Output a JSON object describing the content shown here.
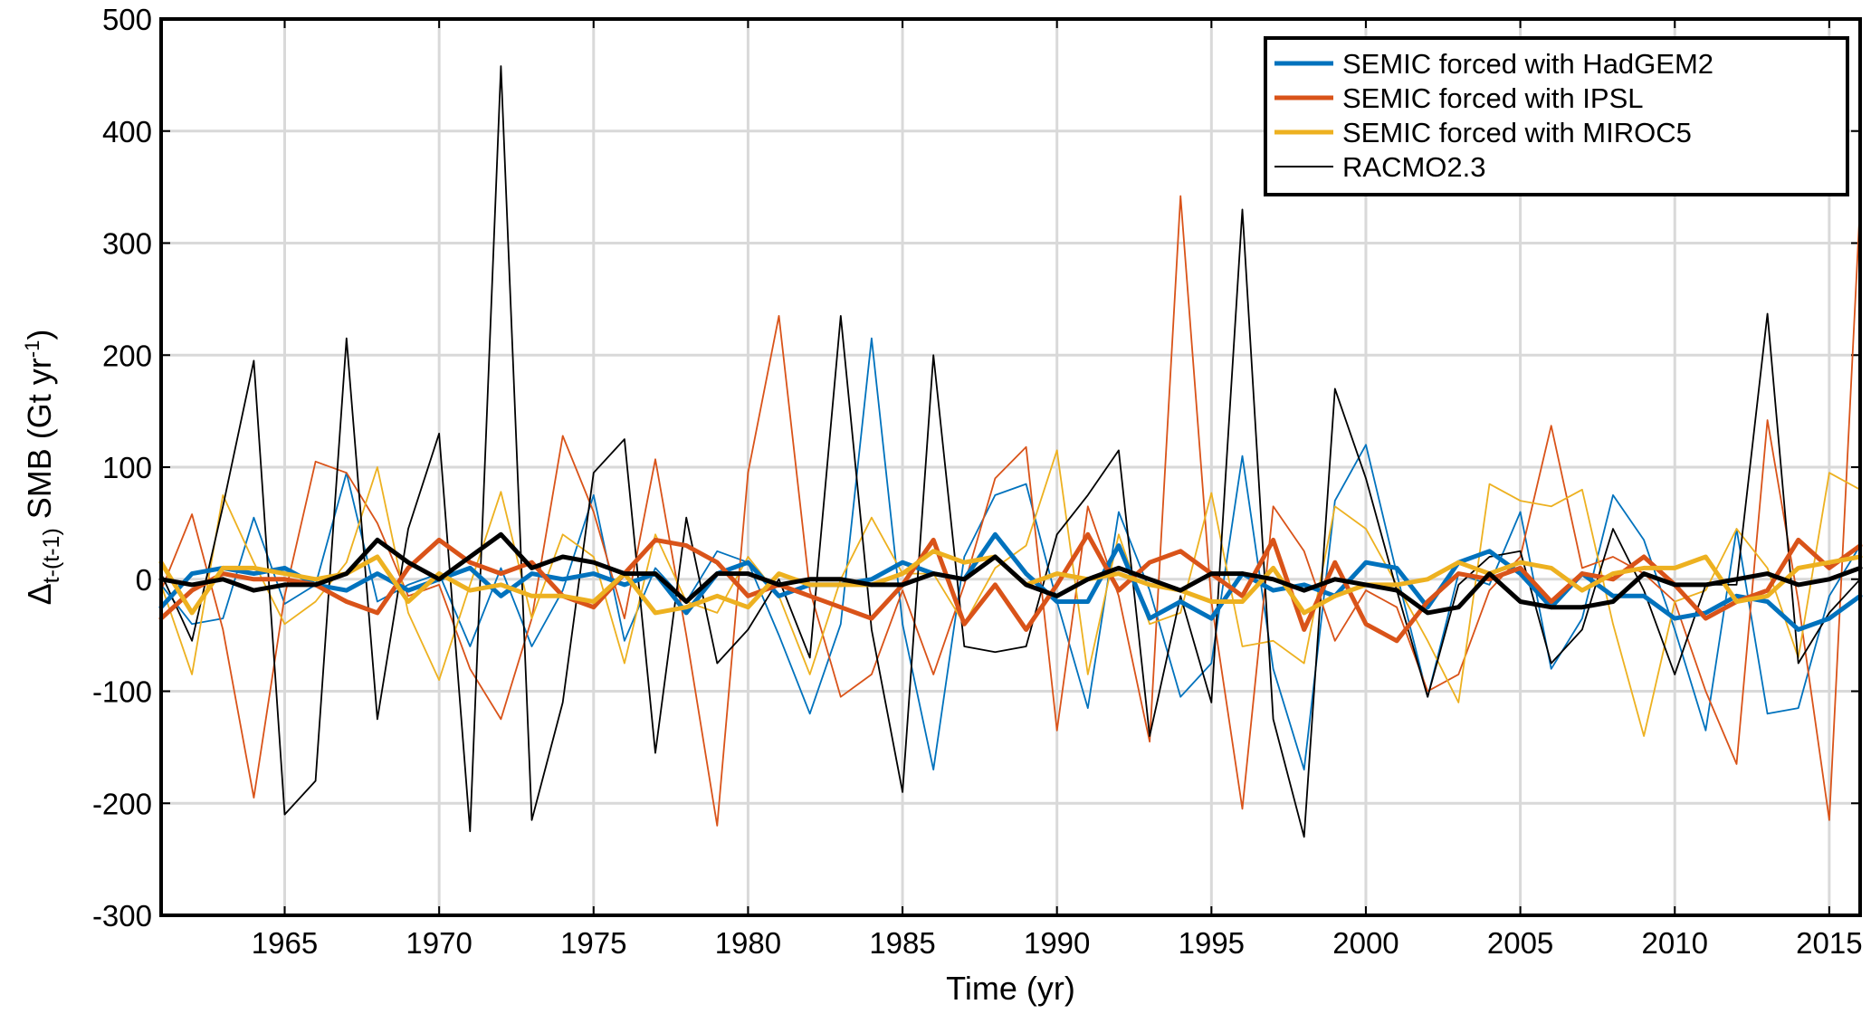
{
  "chart_data": {
    "type": "line",
    "xlabel": "Time (yr)",
    "ylabel": {
      "delta": "Δ",
      "subscript": "t-(t-1)",
      "main": " SMB (Gt yr",
      "superscript": "-1",
      "close": ")"
    },
    "xlim": [
      1961,
      2016
    ],
    "ylim": [
      -300,
      500
    ],
    "xticks": [
      1965,
      1970,
      1975,
      1980,
      1985,
      1990,
      1995,
      2000,
      2005,
      2010,
      2015
    ],
    "yticks": [
      -300,
      -200,
      -100,
      0,
      100,
      200,
      300,
      400,
      500
    ],
    "grid": true,
    "legend_position": "top-right",
    "x": [
      1961,
      1962,
      1963,
      1964,
      1965,
      1966,
      1967,
      1968,
      1969,
      1970,
      1971,
      1972,
      1973,
      1974,
      1975,
      1976,
      1977,
      1978,
      1979,
      1980,
      1981,
      1982,
      1983,
      1984,
      1985,
      1986,
      1987,
      1988,
      1989,
      1990,
      1991,
      1992,
      1993,
      1994,
      1995,
      1996,
      1997,
      1998,
      1999,
      2000,
      2001,
      2002,
      2003,
      2004,
      2005,
      2006,
      2007,
      2008,
      2009,
      2010,
      2011,
      2012,
      2013,
      2014,
      2015,
      2016
    ],
    "series": [
      {
        "name": "SEMIC forced with HadGEM2",
        "color": "#0072BD",
        "style": "thin",
        "values": [
          -5,
          -40,
          -35,
          55,
          -22,
          -5,
          95,
          -20,
          -5,
          5,
          -60,
          10,
          -60,
          -10,
          75,
          -55,
          10,
          -20,
          25,
          15,
          -50,
          -120,
          -40,
          215,
          -40,
          -170,
          20,
          75,
          85,
          -20,
          -115,
          60,
          -10,
          -105,
          -75,
          110,
          -80,
          -170,
          70,
          120,
          5,
          -105,
          5,
          -5,
          60,
          -80,
          -35,
          75,
          35,
          -45,
          -135,
          45,
          -120,
          -115,
          -15,
          30
        ]
      },
      {
        "name": "SEMIC forced with IPSL",
        "color": "#D95319",
        "style": "thin",
        "values": [
          -10,
          58,
          -45,
          -195,
          -15,
          105,
          95,
          50,
          -15,
          -5,
          -80,
          -125,
          -35,
          128,
          60,
          -35,
          107,
          -50,
          -220,
          95,
          235,
          -10,
          -105,
          -85,
          -10,
          -85,
          -5,
          90,
          118,
          -135,
          65,
          -15,
          -145,
          342,
          -20,
          -205,
          65,
          25,
          -55,
          -10,
          -25,
          -100,
          -85,
          -10,
          20,
          137,
          10,
          20,
          5,
          -20,
          -100,
          -165,
          142,
          -20,
          -215,
          335
        ]
      },
      {
        "name": "SEMIC forced with MIROC5",
        "color": "#EDB120",
        "style": "thin",
        "values": [
          -5,
          -85,
          75,
          15,
          -40,
          -20,
          15,
          100,
          -30,
          -90,
          -5,
          78,
          -35,
          40,
          20,
          -75,
          40,
          -20,
          -30,
          20,
          -15,
          -85,
          0,
          55,
          5,
          5,
          -40,
          10,
          30,
          115,
          -85,
          40,
          -40,
          -30,
          77,
          -60,
          -55,
          -75,
          65,
          45,
          -5,
          -55,
          -110,
          85,
          70,
          65,
          80,
          -40,
          -140,
          -20,
          -10,
          45,
          10,
          -70,
          95,
          80
        ]
      },
      {
        "name": "RACMO2.3",
        "color": "#000000",
        "style": "thin",
        "values": [
          5,
          -55,
          65,
          195,
          -210,
          -180,
          215,
          -125,
          45,
          130,
          -225,
          458,
          -215,
          -110,
          95,
          125,
          -155,
          55,
          -75,
          -45,
          0,
          -70,
          235,
          -45,
          -190,
          200,
          -60,
          -65,
          -60,
          40,
          75,
          115,
          -140,
          -15,
          -110,
          330,
          -125,
          -230,
          170,
          90,
          -10,
          -105,
          -5,
          20,
          25,
          -75,
          -45,
          45,
          -10,
          -85,
          -5,
          -5,
          237,
          -75,
          -30,
          0
        ]
      },
      {
        "name": "SEMIC forced with HadGEM2 (smoothed)",
        "color": "#0072BD",
        "style": "thick",
        "values": [
          -25,
          5,
          10,
          5,
          10,
          -5,
          -10,
          5,
          -10,
          0,
          10,
          -15,
          5,
          0,
          5,
          -5,
          5,
          -30,
          5,
          15,
          -15,
          -5,
          -5,
          0,
          15,
          5,
          0,
          40,
          5,
          -20,
          -20,
          30,
          -35,
          -20,
          -35,
          5,
          -10,
          -5,
          -15,
          15,
          10,
          -25,
          15,
          25,
          5,
          -25,
          5,
          -15,
          -15,
          -35,
          -30,
          -15,
          -20,
          -45,
          -35,
          -15
        ]
      },
      {
        "name": "SEMIC forced with IPSL (smoothed)",
        "color": "#D95319",
        "style": "thick",
        "values": [
          -35,
          -10,
          5,
          0,
          0,
          -5,
          -20,
          -30,
          10,
          35,
          15,
          5,
          15,
          -15,
          -25,
          5,
          35,
          30,
          15,
          -15,
          -5,
          -15,
          -25,
          -35,
          -5,
          35,
          -40,
          -5,
          -45,
          -5,
          40,
          -10,
          15,
          25,
          5,
          -15,
          35,
          -45,
          15,
          -40,
          -55,
          -20,
          5,
          0,
          10,
          -20,
          5,
          0,
          20,
          -5,
          -35,
          -20,
          -10,
          35,
          10,
          30
        ]
      },
      {
        "name": "SEMIC forced with MIROC5 (smoothed)",
        "color": "#EDB120",
        "style": "thick",
        "values": [
          15,
          -30,
          10,
          10,
          5,
          0,
          5,
          20,
          -20,
          5,
          -10,
          -5,
          -15,
          -15,
          -20,
          5,
          -30,
          -25,
          -15,
          -25,
          5,
          -5,
          -5,
          -5,
          5,
          25,
          15,
          20,
          -5,
          5,
          0,
          5,
          -5,
          -10,
          -20,
          -20,
          10,
          -30,
          -15,
          -5,
          -5,
          0,
          15,
          5,
          15,
          10,
          -10,
          5,
          10,
          10,
          20,
          -20,
          -15,
          10,
          15,
          20
        ]
      },
      {
        "name": "RACMO2.3 (smoothed)",
        "color": "#000000",
        "style": "thick",
        "values": [
          0,
          -5,
          0,
          -10,
          -5,
          -5,
          5,
          35,
          15,
          0,
          20,
          40,
          10,
          20,
          15,
          5,
          5,
          -20,
          5,
          5,
          -5,
          0,
          0,
          -5,
          -5,
          5,
          0,
          20,
          -5,
          -15,
          0,
          10,
          0,
          -10,
          5,
          5,
          0,
          -10,
          0,
          -5,
          -10,
          -30,
          -25,
          5,
          -20,
          -25,
          -25,
          -20,
          5,
          -5,
          -5,
          0,
          5,
          -5,
          0,
          10
        ]
      }
    ],
    "legend": [
      {
        "label": "SEMIC forced with HadGEM2",
        "color": "#0072BD",
        "thick": true
      },
      {
        "label": "SEMIC forced with IPSL",
        "color": "#D95319",
        "thick": true
      },
      {
        "label": "SEMIC forced with MIROC5",
        "color": "#EDB120",
        "thick": true
      },
      {
        "label": "RACMO2.3",
        "color": "#000000",
        "thick": false
      }
    ]
  }
}
